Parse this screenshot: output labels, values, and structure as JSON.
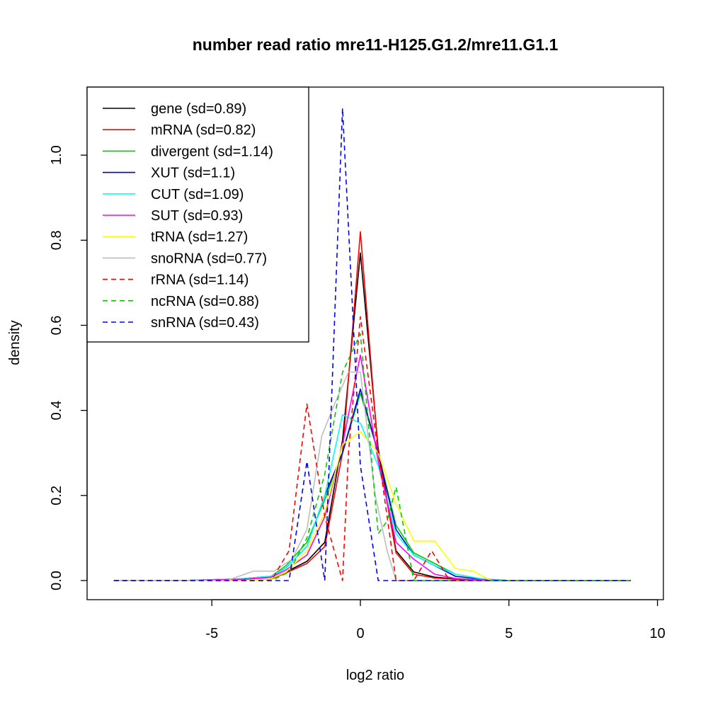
{
  "chart_data": {
    "type": "line",
    "title": "number read ratio mre11-H125.G1.2/mre11.G1.1",
    "xlabel": "log2 ratio",
    "ylabel": "density",
    "xlim": [
      -9.2,
      10.2
    ],
    "ylim": [
      -0.045,
      1.16
    ],
    "x_ticks": [
      -5,
      0,
      5,
      10
    ],
    "x_tick_labels": [
      "-5",
      "0",
      "5",
      "10"
    ],
    "y_ticks": [
      0.0,
      0.2,
      0.4,
      0.6,
      0.8,
      1.0
    ],
    "y_tick_labels": [
      "0.0",
      "0.2",
      "0.4",
      "0.6",
      "0.8",
      "1.0"
    ],
    "grid": false,
    "legend_position": "top-left",
    "series": [
      {
        "name": "gene (sd=0.89)",
        "color": "#000000",
        "dash": "solid",
        "x": [
          -8.3,
          -6,
          -4,
          -3,
          -2.5,
          -1.8,
          -1.2,
          -0.6,
          0,
          0.6,
          1.2,
          1.8,
          2.5,
          3.2,
          4,
          5,
          7,
          9.1
        ],
        "y": [
          0,
          0,
          0.002,
          0.005,
          0.02,
          0.045,
          0.09,
          0.33,
          0.77,
          0.31,
          0.07,
          0.02,
          0.008,
          0.004,
          0.001,
          0,
          0,
          0
        ]
      },
      {
        "name": "mRNA (sd=0.82)",
        "color": "#ff0000",
        "dash": "solid",
        "x": [
          -8.3,
          -6,
          -4,
          -3,
          -2.5,
          -1.8,
          -1.2,
          -0.6,
          0,
          0.6,
          1.2,
          1.8,
          2.5,
          3.2,
          4,
          5,
          7,
          9.1
        ],
        "y": [
          0,
          0,
          0.002,
          0.004,
          0.018,
          0.04,
          0.08,
          0.3,
          0.82,
          0.3,
          0.065,
          0.015,
          0.006,
          0.003,
          0.001,
          0,
          0,
          0
        ]
      },
      {
        "name": "divergent (sd=1.14)",
        "color": "#00cc00",
        "dash": "solid",
        "x": [
          -8.3,
          -6,
          -4,
          -3,
          -2.5,
          -1.8,
          -1.2,
          -0.6,
          0,
          0.6,
          1.2,
          1.8,
          2.5,
          3.2,
          4,
          5,
          7,
          9.1
        ],
        "y": [
          0,
          0,
          0.004,
          0.01,
          0.035,
          0.09,
          0.19,
          0.3,
          0.44,
          0.3,
          0.13,
          0.065,
          0.04,
          0.015,
          0.005,
          0,
          0,
          0
        ]
      },
      {
        "name": "XUT (sd=1.1)",
        "color": "#0000cc",
        "dash": "solid",
        "x": [
          -8.3,
          -6,
          -4,
          -3,
          -2.5,
          -1.8,
          -1.2,
          -0.6,
          0,
          0.6,
          1.2,
          1.8,
          2.5,
          3.2,
          4,
          5,
          7,
          9.1
        ],
        "y": [
          0,
          0,
          0.004,
          0.01,
          0.03,
          0.08,
          0.2,
          0.3,
          0.45,
          0.3,
          0.12,
          0.06,
          0.035,
          0.01,
          0.004,
          0,
          0,
          0
        ]
      },
      {
        "name": "CUT (sd=1.09)",
        "color": "#00ffff",
        "dash": "solid",
        "x": [
          -8.3,
          -6,
          -4,
          -3,
          -2.5,
          -1.8,
          -1.2,
          -0.6,
          0,
          0.6,
          1.2,
          1.8,
          2.5,
          3.2,
          4,
          5,
          7,
          9.1
        ],
        "y": [
          0,
          0,
          0.004,
          0.01,
          0.03,
          0.08,
          0.2,
          0.39,
          0.37,
          0.27,
          0.11,
          0.06,
          0.035,
          0.015,
          0.005,
          0,
          0,
          0
        ]
      },
      {
        "name": "SUT (sd=0.93)",
        "color": "#ff00ff",
        "dash": "solid",
        "x": [
          -8.3,
          -6,
          -4,
          -3,
          -2.5,
          -1.8,
          -1.2,
          -0.6,
          0,
          0.6,
          1.2,
          1.8,
          2.5,
          3.2,
          4,
          5,
          7,
          9.1
        ],
        "y": [
          0,
          0,
          0.003,
          0.008,
          0.025,
          0.06,
          0.15,
          0.32,
          0.53,
          0.28,
          0.09,
          0.05,
          0.015,
          0.005,
          0.002,
          0,
          0,
          0
        ]
      },
      {
        "name": "tRNA (sd=1.27)",
        "color": "#ffff00",
        "dash": "solid",
        "x": [
          -8.3,
          -6,
          -4,
          -3,
          -2.5,
          -1.8,
          -1.2,
          -0.6,
          0,
          0.6,
          1.2,
          1.8,
          2.5,
          3.2,
          3.8,
          4.4,
          5,
          7,
          9.1
        ],
        "y": [
          0,
          0,
          0,
          0.005,
          0.02,
          0.07,
          0.16,
          0.32,
          0.35,
          0.3,
          0.18,
          0.093,
          0.093,
          0.028,
          0.022,
          0,
          0,
          0,
          0
        ]
      },
      {
        "name": "snoRNA (sd=0.77)",
        "color": "#bebebe",
        "dash": "solid",
        "x": [
          -8.3,
          -4.5,
          -3.6,
          -2.9,
          -2.3,
          -1.8,
          -1.3,
          -0.9,
          -0.4,
          0,
          0.5,
          0.9,
          1.2,
          1.5,
          9.1
        ],
        "y": [
          0,
          0,
          0.022,
          0.022,
          0.05,
          0.12,
          0.34,
          0.41,
          0.49,
          0.49,
          0.2,
          0.07,
          0,
          0,
          0
        ]
      },
      {
        "name": "rRNA (sd=1.14)",
        "color": "#ff0000",
        "dash": "dashed",
        "x": [
          -8.3,
          -3,
          -2.4,
          -1.8,
          -1.2,
          -0.6,
          -0.4,
          0,
          0.6,
          1.2,
          1.8,
          2.4,
          3,
          9.1
        ],
        "y": [
          0,
          0,
          0.07,
          0.415,
          0.15,
          0,
          0.3,
          0.62,
          0.3,
          0,
          0,
          0.07,
          0,
          0
        ]
      },
      {
        "name": "ncRNA (sd=0.88)",
        "color": "#00cc00",
        "dash": "dashed",
        "x": [
          -8.3,
          -3,
          -2.4,
          -1.8,
          -1.2,
          -0.6,
          0,
          0.6,
          0.9,
          1.2,
          1.8,
          2.4,
          9.1
        ],
        "y": [
          0,
          0,
          0.02,
          0.1,
          0.25,
          0.49,
          0.58,
          0.11,
          0.14,
          0.22,
          0,
          0,
          0
        ]
      },
      {
        "name": "snRNA (sd=0.43)",
        "color": "#0000ff",
        "dash": "dashed",
        "x": [
          -8.3,
          -2.4,
          -1.8,
          -1.2,
          -0.6,
          0,
          0.6,
          9.1
        ],
        "y": [
          0,
          0,
          0.28,
          0,
          1.11,
          0.27,
          0,
          0
        ]
      }
    ]
  }
}
